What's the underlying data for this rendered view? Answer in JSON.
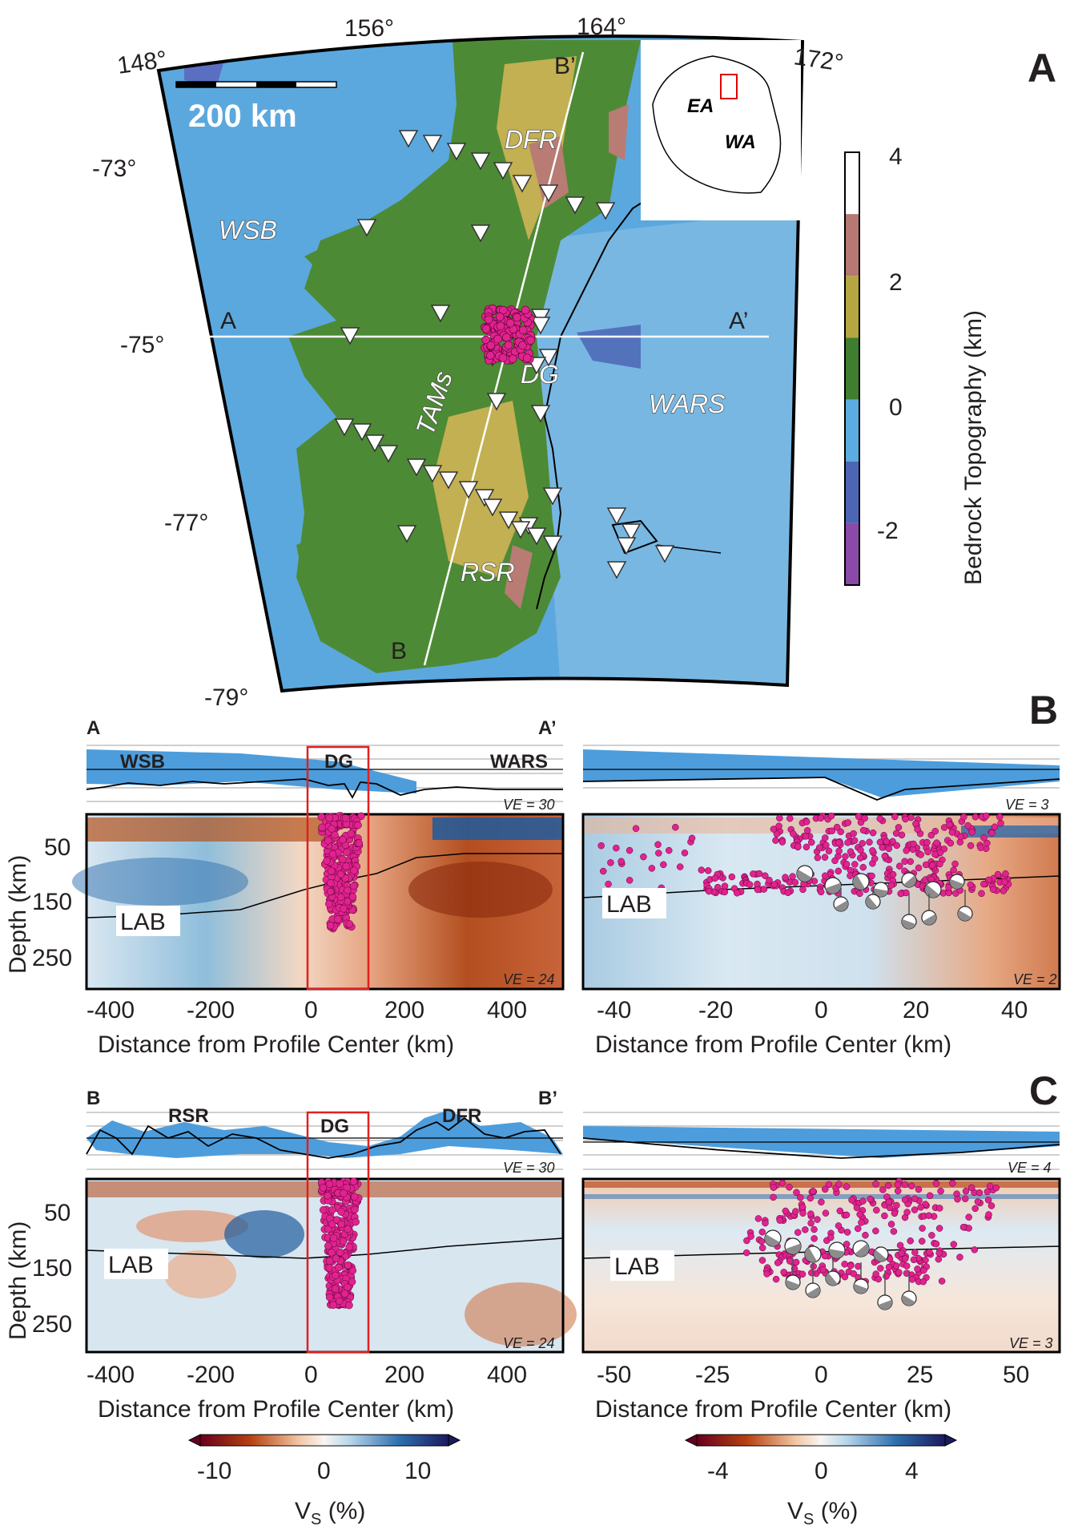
{
  "panels": {
    "a": "A",
    "b": "B",
    "c": "C"
  },
  "map": {
    "lon_labels": [
      "148°",
      "156°",
      "164°",
      "172°"
    ],
    "lat_labels": [
      "-73°",
      "-75°",
      "-77°",
      "-79°"
    ],
    "scale_bar": "200 km",
    "regions": {
      "dfr": "DFR",
      "wsb": "WSB",
      "tams": "TAMs",
      "dg": "DG",
      "wars": "WARS",
      "rsr": "RSR"
    },
    "inset": {
      "ea": "EA",
      "wa": "WA"
    },
    "profile_ends": {
      "a": "A",
      "a_prime": "A’",
      "b": "B",
      "b_prime": "B’"
    },
    "colorbar": {
      "label": "Bedrock Topography (km)",
      "ticks": [
        "4",
        "2",
        "0",
        "-2"
      ],
      "colors": [
        "#ffffff",
        "#b57872",
        "#b5a642",
        "#3f7d2f",
        "#5bace0",
        "#4c66b5",
        "#8a4aa8"
      ]
    },
    "colors": {
      "ocean": "#5ba8de",
      "land": "#4d8a35",
      "high": "#c2b052",
      "peak": "#b87c74",
      "seismicity": "#e0238f"
    }
  },
  "sections": {
    "ab_left": {
      "start": "A",
      "end": "A’",
      "labels": {
        "left": "WSB",
        "mid": "DG",
        "right": "WARS"
      },
      "ve_top": "VE = 30",
      "ve_bottom": "VE = 24"
    },
    "ab_right": {
      "ve_top": "VE = 3",
      "ve_bottom": "VE = 2"
    },
    "bb_left": {
      "start": "B",
      "end": "B’",
      "labels": {
        "left": "RSR",
        "mid": "DG",
        "right": "DFR"
      },
      "ve_top": "VE = 30",
      "ve_bottom": "VE = 24"
    },
    "bb_right": {
      "ve_top": "VE = 4",
      "ve_bottom": "VE = 3"
    },
    "lab": "LAB",
    "depth_label": "Depth (km)",
    "depth_ticks": [
      "50",
      "150",
      "250"
    ],
    "xlabel": "Distance from Profile Center (km)",
    "x_ticks_left": [
      "-400",
      "-200",
      "0",
      "200",
      "400"
    ],
    "x_ticks_b_right": [
      "-40",
      "-20",
      "0",
      "20",
      "40"
    ],
    "x_ticks_c_right": [
      "-50",
      "-25",
      "0",
      "25",
      "50"
    ]
  },
  "vs_colorbars": {
    "left": {
      "ticks": [
        "-10",
        "0",
        "10"
      ],
      "label": "V",
      "sub": "S",
      "unit": " (%)"
    },
    "right": {
      "ticks": [
        "-4",
        "0",
        "4"
      ],
      "label": "V",
      "sub": "S",
      "unit": " (%)"
    }
  }
}
